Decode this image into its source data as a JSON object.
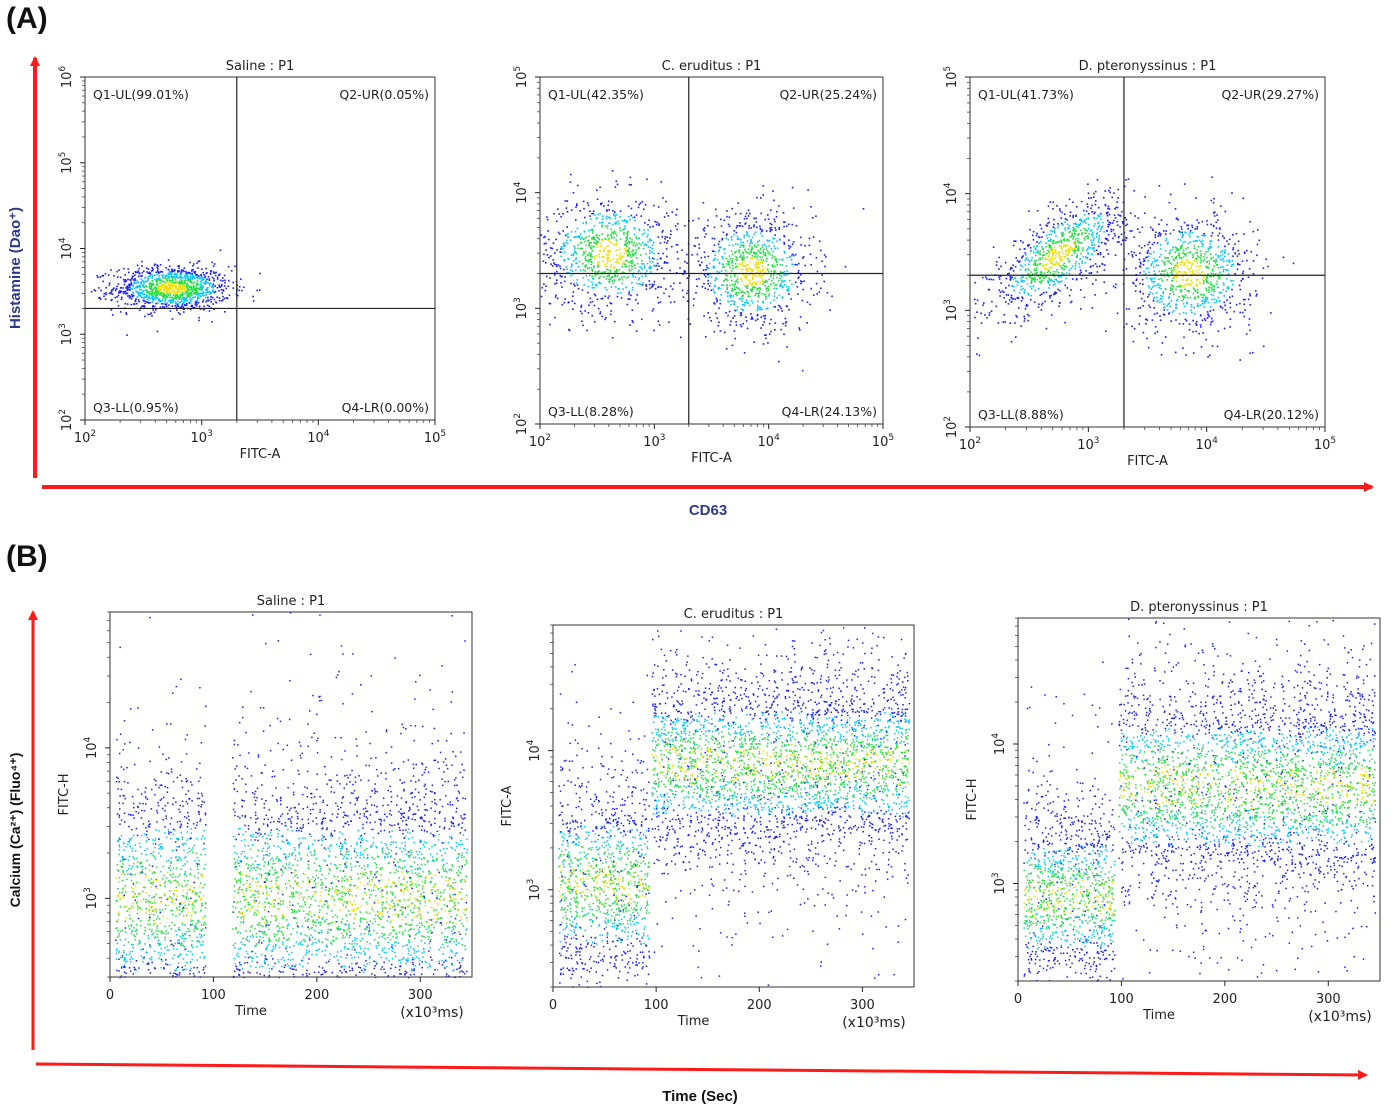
{
  "panel_a": {
    "label": "(A)",
    "y_axis_label": "Histamine (Dao⁺)",
    "x_axis_label": "CD63"
  },
  "panel_b": {
    "label": "(B)",
    "y_axis_label": "Calcium (Ca²⁺) (Fluo⁴⁺)",
    "x_axis_label": "Time (Sec)"
  },
  "colors": {
    "arrow": "#ff1a1a",
    "axis_label_blue": "#2e3a8c",
    "dot_blue": "#1a1aff",
    "dot_cyan": "#00c8ff",
    "dot_green": "#20e040",
    "dot_yellow": "#f0e000"
  },
  "chart_data": [
    {
      "type": "scatter",
      "title": "Saline : P1",
      "xlabel": "FITC-A",
      "ylabel": "",
      "x_scale": "log",
      "y_scale": "log",
      "xlim": [
        100,
        100000
      ],
      "ylim": [
        100,
        1000000
      ],
      "x_ticks": [
        "10",
        "10",
        "10",
        "10"
      ],
      "x_tick_exps": [
        "2",
        "3",
        "4",
        "5"
      ],
      "y_ticks": [
        "10",
        "10",
        "10",
        "10",
        "10"
      ],
      "y_tick_exps": [
        "2",
        "3",
        "4",
        "5",
        "6"
      ],
      "gate_x": 2000,
      "gate_y": 2000,
      "quadrants": [
        {
          "name": "Q1-UL",
          "label": "Q1-UL(99.01%)",
          "percent": 99.01
        },
        {
          "name": "Q2-UR",
          "label": "Q2-UR(0.05%)",
          "percent": 0.05
        },
        {
          "name": "Q3-LL",
          "label": "Q3-LL(0.95%)",
          "percent": 0.95
        },
        {
          "name": "Q4-LR",
          "label": "Q4-LR(0.00%)",
          "percent": 0.0
        }
      ],
      "clusters": [
        {
          "center": [
            550,
            3500
          ],
          "spread": [
            0.25,
            0.13
          ],
          "n": 1200
        }
      ]
    },
    {
      "type": "scatter",
      "title": "C. eruditus : P1",
      "xlabel": "FITC-A",
      "ylabel": "",
      "x_scale": "log",
      "y_scale": "log",
      "xlim": [
        100,
        100000
      ],
      "ylim": [
        100,
        100000
      ],
      "x_ticks": [
        "10",
        "10",
        "10",
        "10"
      ],
      "x_tick_exps": [
        "2",
        "3",
        "4",
        "5"
      ],
      "y_ticks": [
        "10",
        "10",
        "10",
        "10"
      ],
      "y_tick_exps": [
        "2",
        "3",
        "4",
        "5"
      ],
      "gate_x": 2000,
      "gate_y": 2000,
      "quadrants": [
        {
          "name": "Q1-UL",
          "label": "Q1-UL(42.35%)",
          "percent": 42.35
        },
        {
          "name": "Q2-UR",
          "label": "Q2-UR(25.24%)",
          "percent": 25.24
        },
        {
          "name": "Q3-LL",
          "label": "Q3-LL(8.28%)",
          "percent": 8.28
        },
        {
          "name": "Q4-LR",
          "label": "Q4-LR(24.13%)",
          "percent": 24.13
        }
      ],
      "clusters": [
        {
          "center": [
            400,
            3000
          ],
          "spread": [
            0.3,
            0.25
          ],
          "n": 900
        },
        {
          "center": [
            7000,
            2100
          ],
          "spread": [
            0.27,
            0.25
          ],
          "n": 900
        }
      ]
    },
    {
      "type": "scatter",
      "title": "D. pteronyssinus : P1",
      "xlabel": "FITC-A",
      "ylabel": "",
      "x_scale": "log",
      "y_scale": "log",
      "xlim": [
        100,
        100000
      ],
      "ylim": [
        100,
        100000
      ],
      "x_ticks": [
        "10",
        "10",
        "10",
        "10"
      ],
      "x_tick_exps": [
        "2",
        "3",
        "4",
        "5"
      ],
      "y_ticks": [
        "10",
        "10",
        "10",
        "10"
      ],
      "y_tick_exps": [
        "2",
        "3",
        "4",
        "5"
      ],
      "gate_x": 2000,
      "gate_y": 2000,
      "quadrants": [
        {
          "name": "Q1-UL",
          "label": "Q1-UL(41.73%)",
          "percent": 41.73
        },
        {
          "name": "Q2-UR",
          "label": "Q2-UR(29.27%)",
          "percent": 29.27
        },
        {
          "name": "Q3-LL",
          "label": "Q3-LL(8.88%)",
          "percent": 8.88
        },
        {
          "name": "Q4-LR",
          "label": "Q4-LR(20.12%)",
          "percent": 20.12
        }
      ],
      "clusters": [
        {
          "center": [
            550,
            3000
          ],
          "spread": [
            0.28,
            0.25
          ],
          "corr": 0.7,
          "n": 900
        },
        {
          "center": [
            7000,
            2100
          ],
          "spread": [
            0.27,
            0.25
          ],
          "n": 900
        }
      ]
    },
    {
      "type": "scatter",
      "title": "Saline : P1",
      "xlabel": "Time",
      "xunit": "(x10³ms)",
      "ylabel": "FITC-H",
      "x_scale": "linear",
      "y_scale": "log",
      "xlim": [
        0,
        350
      ],
      "ylim": [
        300,
        80000
      ],
      "x_ticks": [
        "0",
        "100",
        "200",
        "300"
      ],
      "y_ticks": [
        "10",
        "10"
      ],
      "y_tick_exps": [
        "3",
        "4"
      ],
      "segments": [
        {
          "t_start": 5,
          "t_end": 92,
          "y_center": 1000,
          "spread": 0.45
        },
        {
          "t_start": 118,
          "t_end": 345,
          "y_center": 1000,
          "spread": 0.45
        }
      ]
    },
    {
      "type": "scatter",
      "title": "C. eruditus : P1",
      "xlabel": "Time",
      "xunit": "(x10³ms)",
      "ylabel": "FITC-A",
      "x_scale": "linear",
      "y_scale": "log",
      "xlim": [
        0,
        350
      ],
      "ylim": [
        200,
        80000
      ],
      "x_ticks": [
        "0",
        "100",
        "200",
        "300"
      ],
      "y_ticks": [
        "10",
        "10"
      ],
      "y_tick_exps": [
        "3",
        "4"
      ],
      "segments": [
        {
          "t_start": 5,
          "t_end": 93,
          "y_center": 1100,
          "spread": 0.4
        },
        {
          "t_start": 95,
          "t_end": 345,
          "y_center": 8000,
          "spread": 0.35
        }
      ]
    },
    {
      "type": "scatter",
      "title": "D. pteronyssinus : P1",
      "xlabel": "Time",
      "xunit": "(x10³ms)",
      "ylabel": "FITC-H",
      "x_scale": "linear",
      "y_scale": "log",
      "xlim": [
        0,
        350
      ],
      "ylim": [
        200,
        80000
      ],
      "x_ticks": [
        "0",
        "100",
        "200",
        "300"
      ],
      "y_ticks": [
        "10",
        "10"
      ],
      "y_tick_exps": [
        "3",
        "4"
      ],
      "segments": [
        {
          "t_start": 5,
          "t_end": 93,
          "y_center": 800,
          "spread": 0.35
        },
        {
          "t_start": 97,
          "t_end": 345,
          "y_center": 5000,
          "spread": 0.4
        }
      ]
    }
  ]
}
